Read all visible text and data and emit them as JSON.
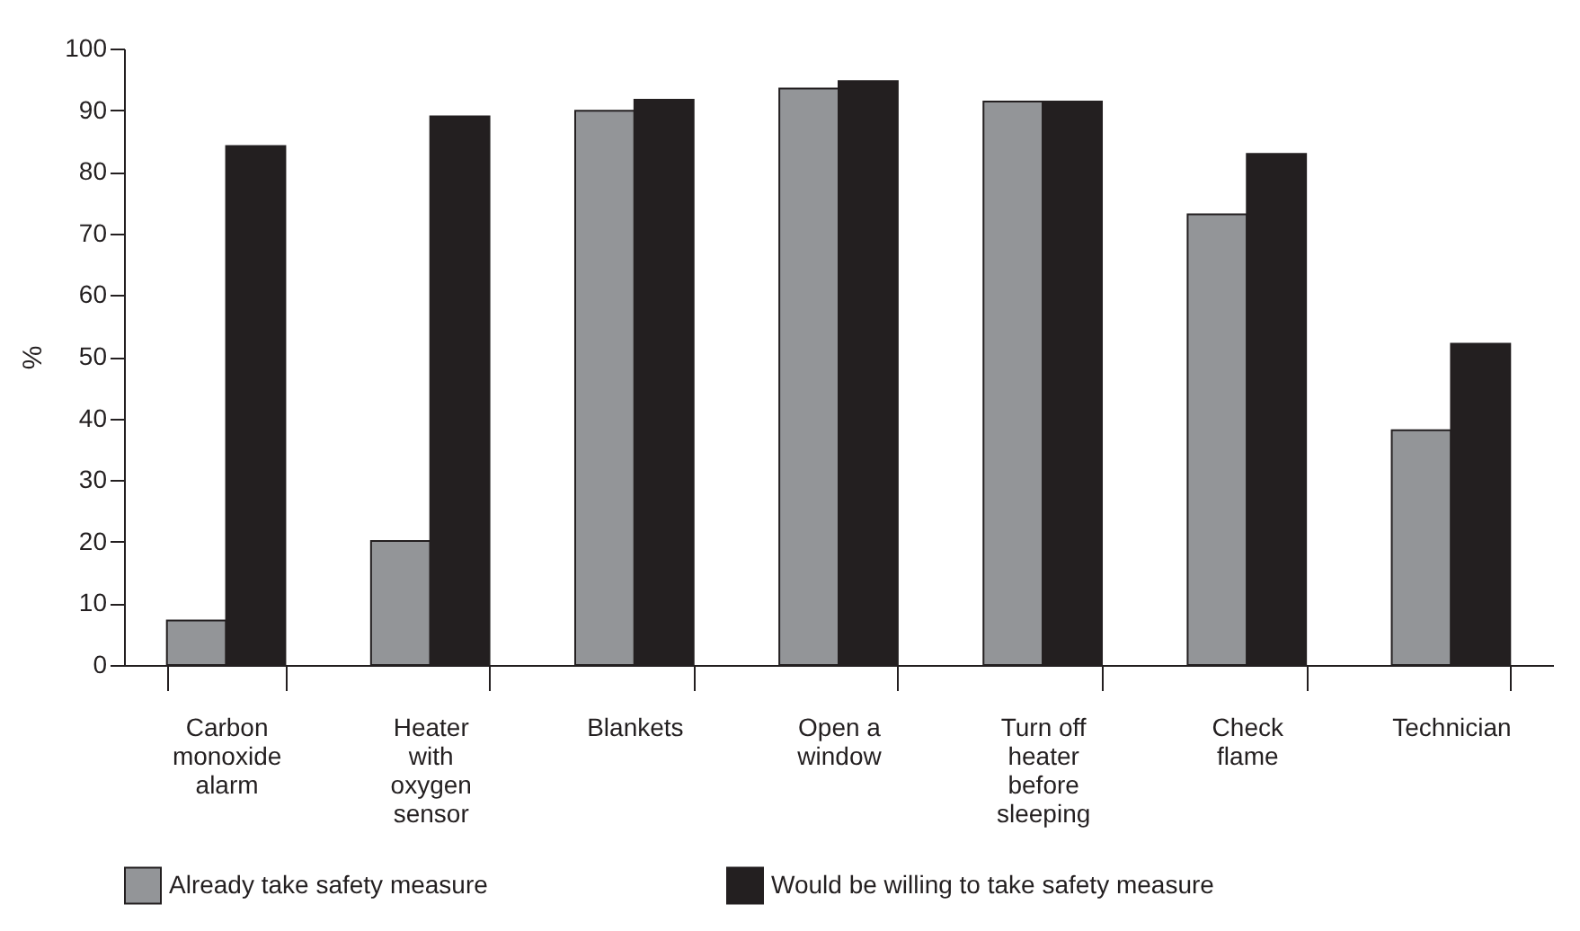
{
  "chart_data": {
    "type": "bar",
    "ylabel": "%",
    "categories": [
      "Carbon\nmonoxide\nalarm",
      "Heater\nwith\noxygen\nsensor",
      "Blankets",
      "Open a\nwindow",
      "Turn off\nheater\nbefore\nsleeping",
      "Check\nflame",
      "Technician"
    ],
    "series": [
      {
        "name": "Already take safety measure",
        "color": "#939598",
        "values": [
          7.2,
          20.1,
          89.9,
          93.5,
          91.4,
          73.1,
          38.1
        ]
      },
      {
        "name": "Would be willing to take safety measure",
        "color": "#231f20",
        "values": [
          84.2,
          89.0,
          91.7,
          94.7,
          91.4,
          82.9,
          52.1
        ]
      }
    ],
    "ylim": [
      0,
      100
    ],
    "yticks": [
      0,
      10,
      20,
      30,
      40,
      50,
      60,
      70,
      80,
      90,
      100
    ],
    "grid": false,
    "legend": "bottom"
  }
}
